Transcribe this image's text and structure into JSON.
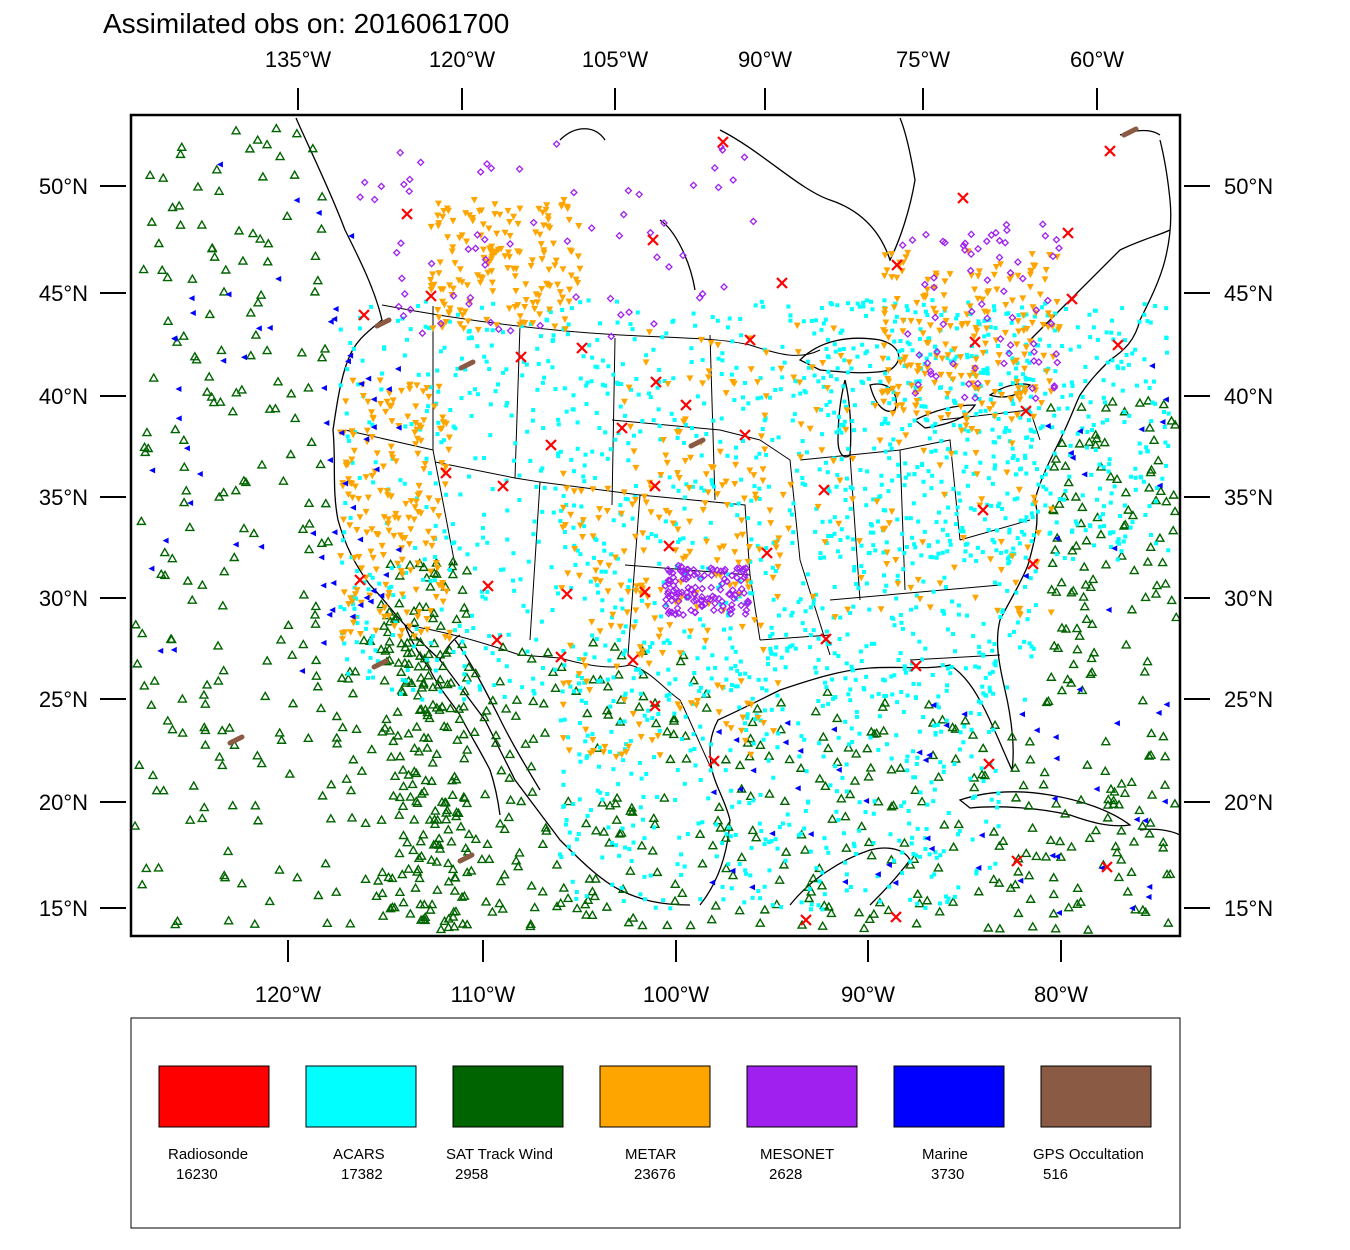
{
  "title": "Assimilated obs on: 2016061700",
  "map": {
    "lon_range": [
      -128.5,
      -73.5
    ],
    "lat_range": [
      13.7,
      53.5
    ],
    "top_lon_labels": [
      "135°W",
      "120°W",
      "105°W",
      "90°W",
      "75°W",
      "60°W"
    ],
    "bottom_lon_labels": [
      "120°W",
      "110°W",
      "100°W",
      "90°W",
      "80°W"
    ],
    "lat_labels": [
      "50°N",
      "45°N",
      "40°N",
      "35°N",
      "30°N",
      "25°N",
      "20°N",
      "15°N"
    ]
  },
  "legend": [
    {
      "name": "Radiosonde",
      "count": "16230",
      "color": "#ff0000",
      "marker": "x-icon"
    },
    {
      "name": "ACARS",
      "count": "17382",
      "color": "#00ffff",
      "marker": "square-dot-icon"
    },
    {
      "name": "SAT Track Wind",
      "count": "2958",
      "color": "#006400",
      "marker": "triangle-up-icon"
    },
    {
      "name": "METAR",
      "count": "23676",
      "color": "#ffa500",
      "marker": "triangle-down-icon"
    },
    {
      "name": "MESONET",
      "count": "2628",
      "color": "#a020f0",
      "marker": "diamond-icon"
    },
    {
      "name": "Marine",
      "count": "3730",
      "color": "#0000ff",
      "marker": "triangle-left-icon"
    },
    {
      "name": "GPS Occultation",
      "count": "516",
      "color": "#8b5a44",
      "marker": "streak-icon"
    }
  ]
}
